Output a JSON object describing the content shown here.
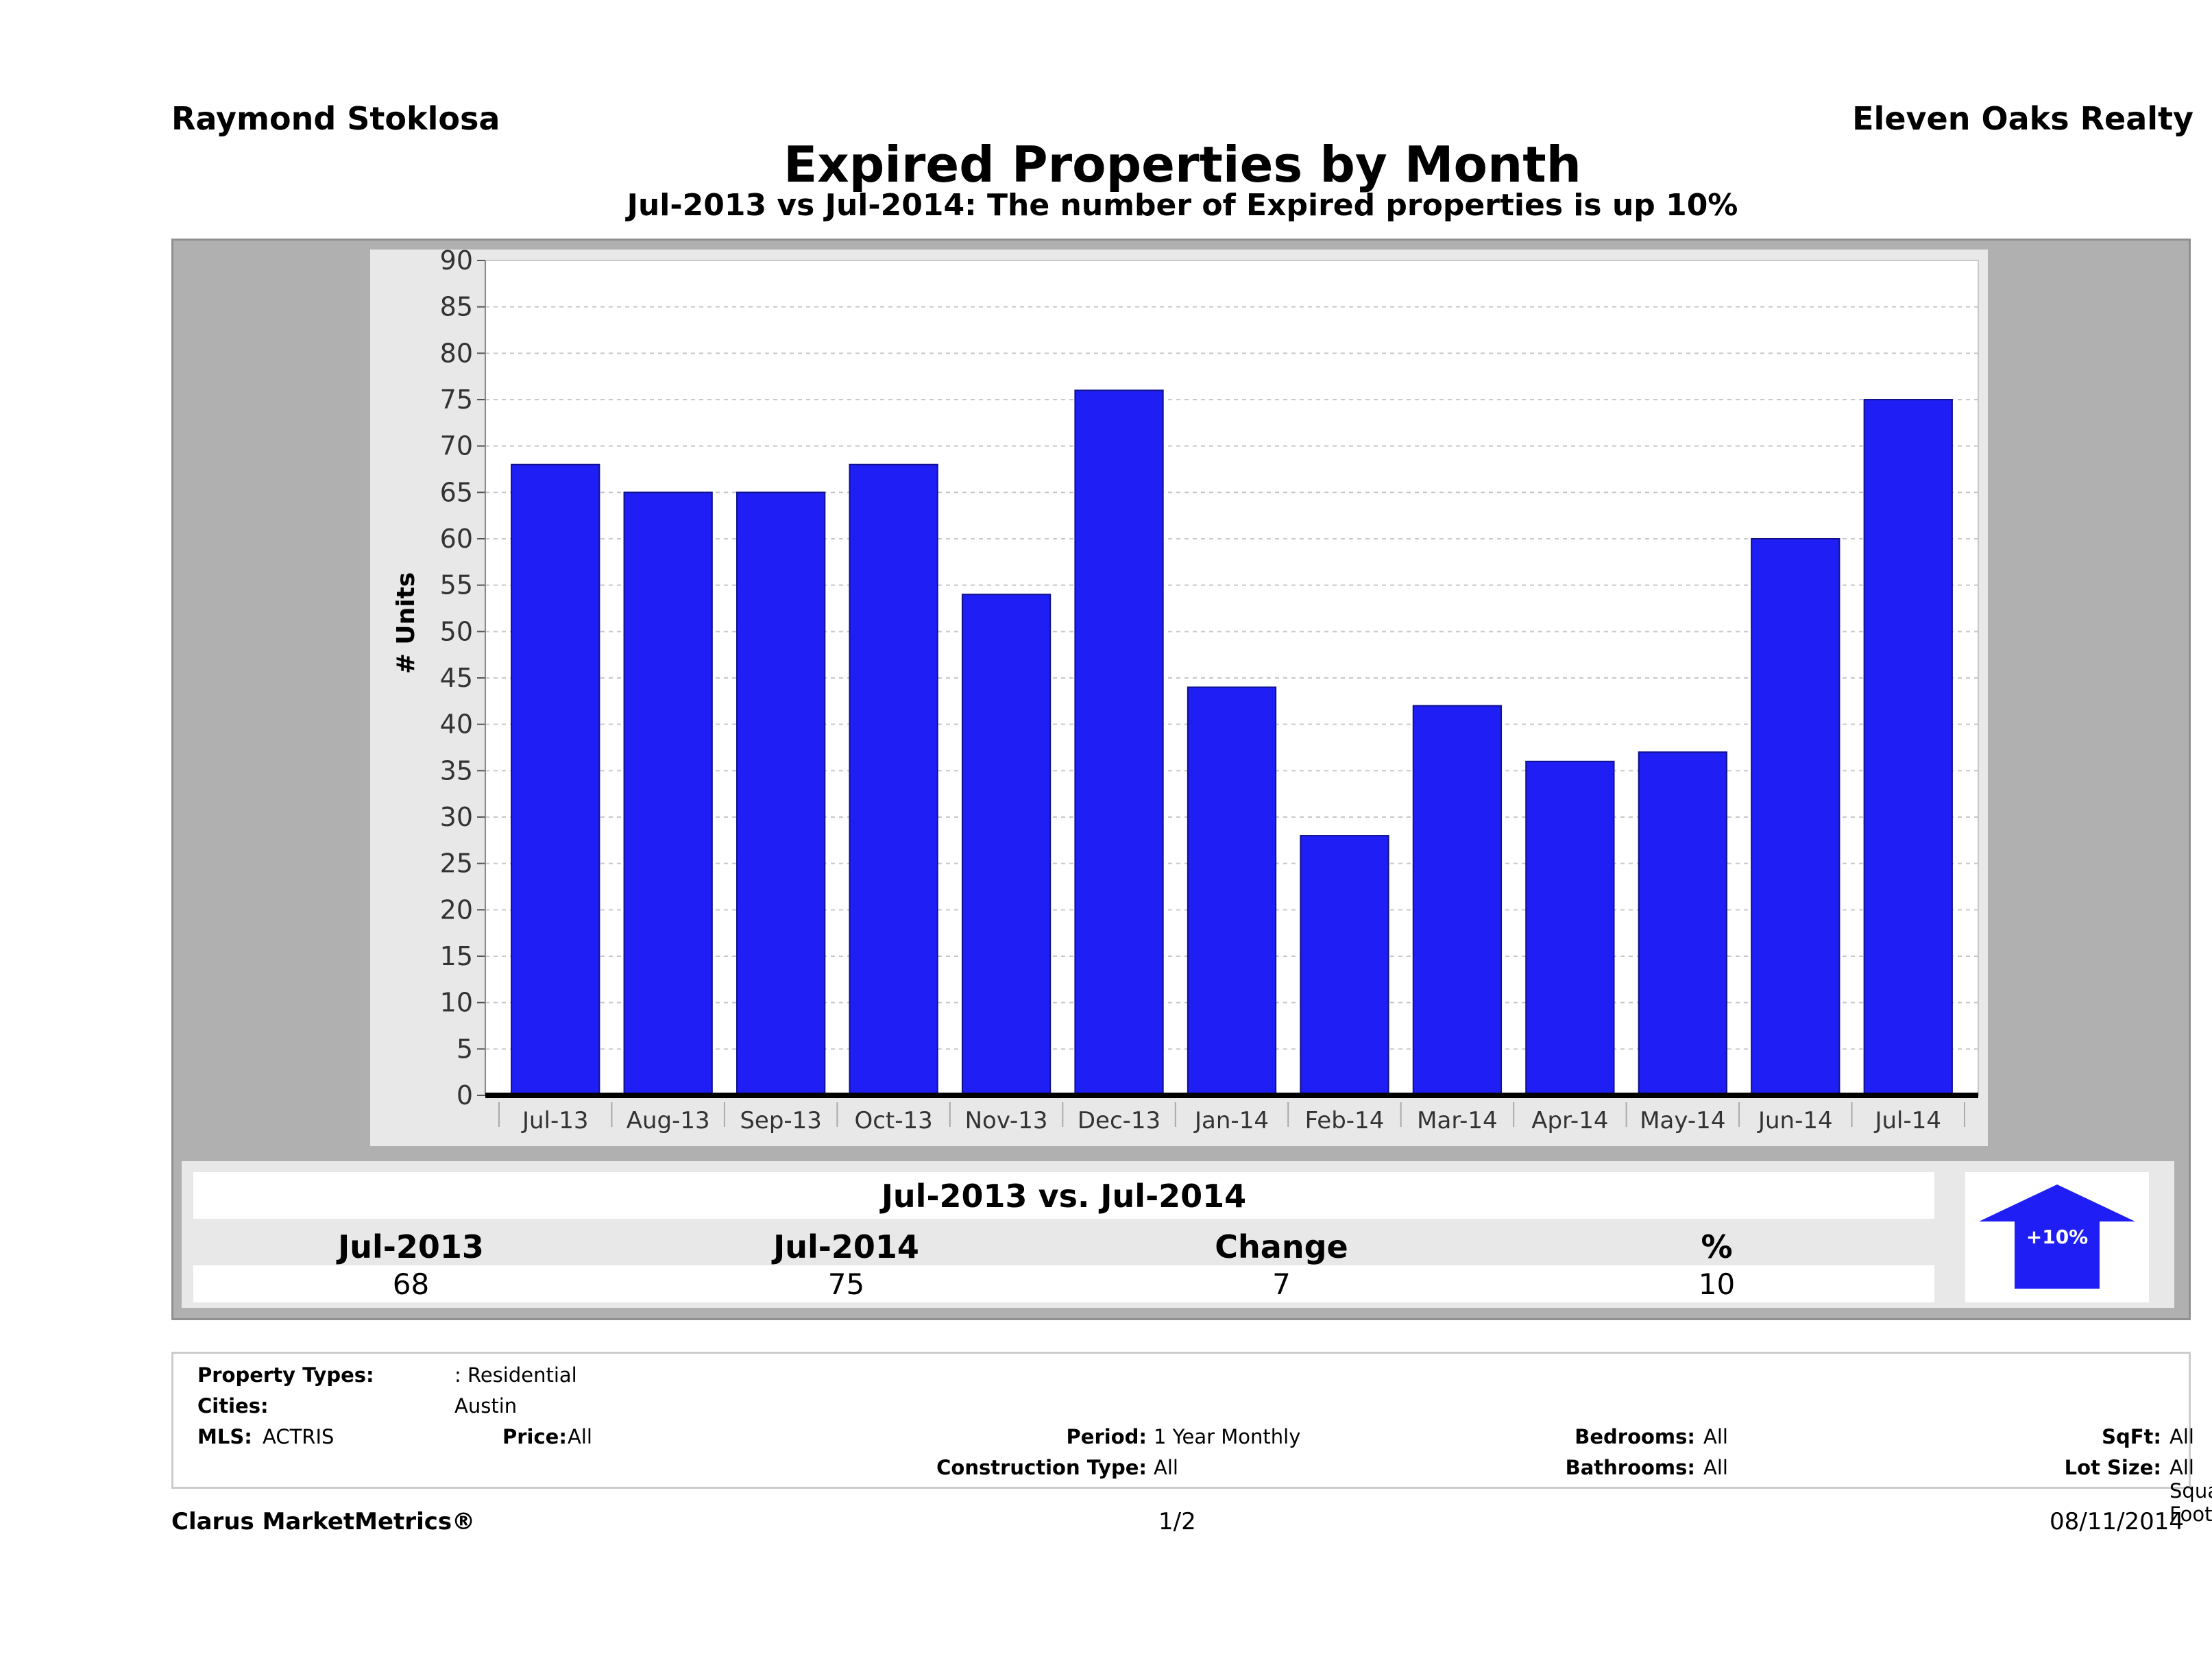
{
  "header": {
    "agent": "Raymond Stoklosa",
    "company": "Eleven Oaks Realty",
    "title": "Expired Properties by Month",
    "subtitle": "Jul-2013 vs Jul-2014: The number of Expired  properties is up 10%"
  },
  "chart_data": {
    "type": "bar",
    "categories": [
      "Jul-13",
      "Aug-13",
      "Sep-13",
      "Oct-13",
      "Nov-13",
      "Dec-13",
      "Jan-14",
      "Feb-14",
      "Mar-14",
      "Apr-14",
      "May-14",
      "Jun-14",
      "Jul-14"
    ],
    "values": [
      68,
      65,
      65,
      68,
      54,
      76,
      44,
      28,
      42,
      36,
      37,
      60,
      75
    ],
    "ylabel": "# Units",
    "ylim": [
      0,
      90
    ],
    "yticks": [
      0,
      5,
      10,
      15,
      20,
      25,
      30,
      35,
      40,
      45,
      50,
      55,
      60,
      65,
      70,
      75,
      80,
      85,
      90
    ],
    "bar_color": "#1f1ff5",
    "grid": true
  },
  "summary": {
    "title": "Jul-2013 vs. Jul-2014",
    "headers": [
      "Jul-2013",
      "Jul-2014",
      "Change",
      "%"
    ],
    "values": [
      "68",
      "75",
      "7",
      "10"
    ],
    "badge": "+10%",
    "badge_color": "#1f1ff5"
  },
  "criteria": {
    "property_types_label": "Property Types:",
    "property_types_value": ": Residential",
    "cities_label": "Cities:",
    "cities_value": "Austin",
    "mls_label": "MLS:",
    "mls_value": "ACTRIS",
    "price_label": "Price:",
    "price_value": "All",
    "period_label": "Period:",
    "period_value": "1 Year Monthly",
    "construction_label": "Construction Type:",
    "construction_value": "All",
    "bedrooms_label": "Bedrooms:",
    "bedrooms_value": "All",
    "bathrooms_label": "Bathrooms:",
    "bathrooms_value": "All",
    "sqft_label": "SqFt:",
    "sqft_value": "All",
    "lotsize_label": "Lot Size:",
    "lotsize_value": "All Square Footage"
  },
  "footer": {
    "brand": "Clarus MarketMetrics®",
    "page": "1/2",
    "date": "08/11/2014"
  }
}
